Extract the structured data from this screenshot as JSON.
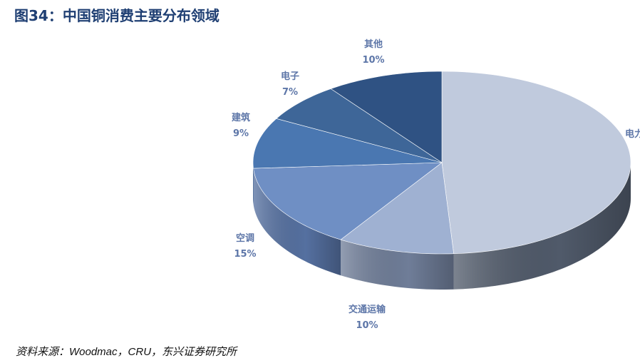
{
  "title": "图34：中国铜消费主要分布领域",
  "source": "资料来源：Woodmac，CRU，东兴证券研究所",
  "chart_data": {
    "type": "pie",
    "title": "图34：中国铜消费主要分布领域",
    "style": "3d",
    "start": "top",
    "direction": "clockwise",
    "slices": [
      {
        "label": "电力",
        "value": 49,
        "pct_label": "",
        "color": "#c0cadd",
        "side": "#505a6a"
      },
      {
        "label": "交通运输",
        "value": 10,
        "pct_label": "10%",
        "color": "#9fb1d2",
        "side": "#6f7d98"
      },
      {
        "label": "空调",
        "value": 15,
        "pct_label": "15%",
        "color": "#6f8fc4",
        "side": "#5570a0"
      },
      {
        "label": "建筑",
        "value": 9,
        "pct_label": "9%",
        "color": "#4a77b1",
        "side": "#3a5f90"
      },
      {
        "label": "电子",
        "value": 7,
        "pct_label": "7%",
        "color": "#3e6698",
        "side": "#31527c"
      },
      {
        "label": "其他",
        "value": 10,
        "pct_label": "10%",
        "color": "#2f5283",
        "side": "#26436b"
      }
    ]
  }
}
